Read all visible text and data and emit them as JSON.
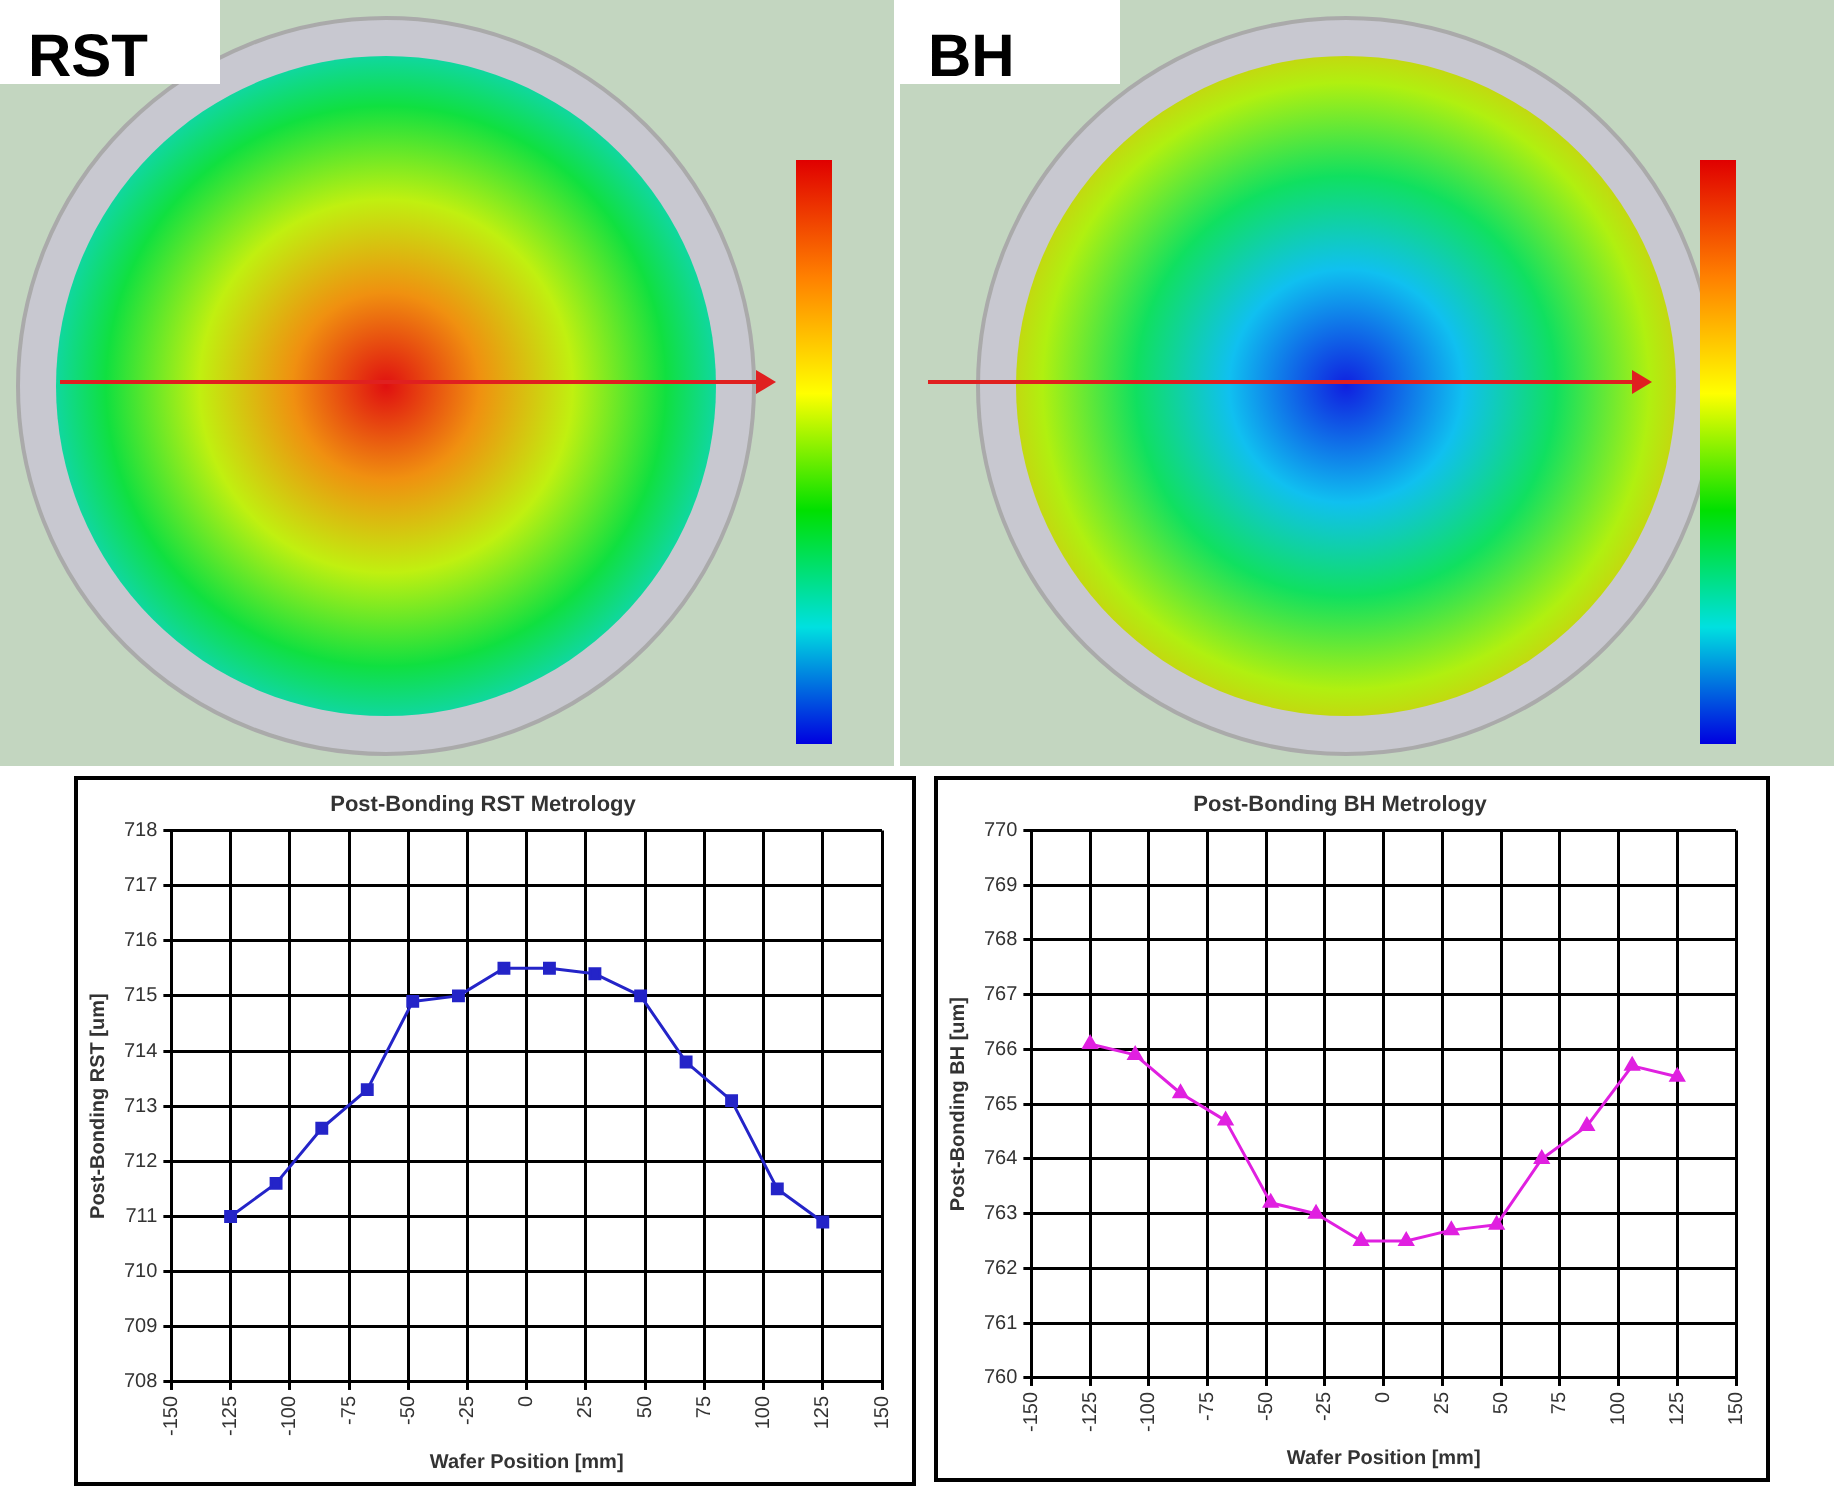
{
  "chart_data": [
    {
      "type": "line",
      "title": "Post-Bonding RST Metrology",
      "xlabel": "Wafer Position [mm]",
      "ylabel": "Post-Bonding RST [um]",
      "annotations": [
        "RST"
      ],
      "x": [
        -125,
        -105.8,
        -86.5,
        -67.3,
        -48.1,
        -28.8,
        -9.6,
        9.6,
        28.8,
        48.1,
        67.3,
        86.5,
        105.8,
        125
      ],
      "series": [
        {
          "color": "#2424c8",
          "values": [
            711.0,
            711.6,
            712.6,
            713.3,
            714.9,
            715.0,
            715.5,
            715.5,
            715.4,
            715.0,
            713.8,
            713.1,
            711.5,
            710.9
          ]
        }
      ],
      "xlim": [
        -150,
        150
      ],
      "xticks": [
        -150,
        -125,
        -100,
        -75,
        -50,
        -25,
        0,
        25,
        50,
        75,
        100,
        125,
        150
      ],
      "ylim": [
        708,
        718
      ],
      "yticks": [
        708,
        709,
        710,
        711,
        712,
        713,
        714,
        715,
        716,
        717,
        718
      ],
      "grid": true,
      "legend": false,
      "marker": "square",
      "line_style": "solid"
    },
    {
      "type": "line",
      "title": "Post-Bonding BH Metrology",
      "xlabel": "Wafer Position [mm]",
      "ylabel": "Post-Bonding BH [um]",
      "annotations": [
        "BH"
      ],
      "x": [
        -125,
        -105.8,
        -86.5,
        -67.3,
        -48.1,
        -28.8,
        -9.6,
        9.6,
        28.8,
        48.1,
        67.3,
        86.5,
        105.8,
        125
      ],
      "series": [
        {
          "color": "#e020e0",
          "values": [
            766.1,
            765.9,
            765.2,
            764.7,
            763.2,
            763.0,
            762.5,
            762.5,
            762.7,
            762.8,
            764.0,
            764.6,
            765.7,
            765.5
          ]
        }
      ],
      "xlim": [
        -150,
        150
      ],
      "xticks": [
        -150,
        -125,
        -100,
        -75,
        -50,
        -25,
        0,
        25,
        50,
        75,
        100,
        125,
        150
      ],
      "ylim": [
        760,
        770
      ],
      "yticks": [
        760,
        761,
        762,
        763,
        764,
        765,
        766,
        767,
        768,
        769,
        770
      ],
      "grid": true,
      "legend": false,
      "marker": "triangle",
      "line_style": "solid"
    }
  ]
}
